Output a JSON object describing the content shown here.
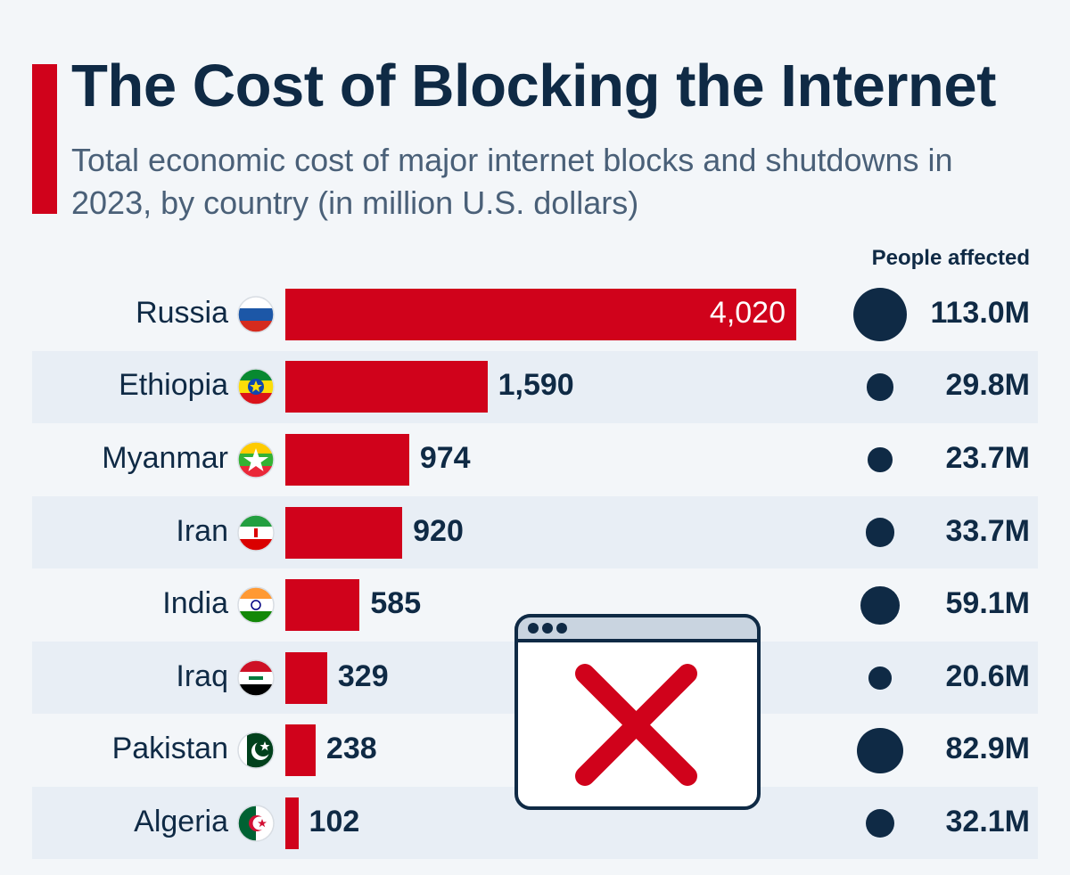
{
  "colors": {
    "accent": "#d0021b",
    "navy": "#0f2a45",
    "row_shade": "#e8eef5",
    "background": "#f3f6f9"
  },
  "header": {
    "title": "The Cost of Blocking the Internet",
    "subtitle": "Total economic cost of major internet blocks and shutdowns in 2023, by country (in million U.S. dollars)",
    "people_header": "People affected"
  },
  "icons": [
    "browser-window-icon",
    "red-x-icon"
  ],
  "chart_data": {
    "type": "bar",
    "orientation": "horizontal",
    "title": "The Cost of Blocking the Internet",
    "subtitle": "Total economic cost of major internet blocks and shutdowns in 2023, by country (in million U.S. dollars)",
    "xlim": [
      0,
      4020
    ],
    "grid": false,
    "categories": [
      "Russia",
      "Ethiopia",
      "Myanmar",
      "Iran",
      "India",
      "Iraq",
      "Pakistan",
      "Algeria"
    ],
    "values": [
      4020,
      1590,
      974,
      920,
      585,
      329,
      238,
      102
    ],
    "value_labels": [
      "4,020",
      "1,590",
      "974",
      "920",
      "585",
      "329",
      "238",
      "102"
    ],
    "people_affected": {
      "label": "People affected",
      "values": [
        113.0,
        29.8,
        23.7,
        33.7,
        59.1,
        20.6,
        82.9,
        32.1
      ],
      "labels": [
        "113.0M",
        "29.8M",
        "23.7M",
        "33.7M",
        "59.1M",
        "20.6M",
        "82.9M",
        "32.1M"
      ]
    },
    "flags": [
      "russia-flag-icon",
      "ethiopia-flag-icon",
      "myanmar-flag-icon",
      "iran-flag-icon",
      "india-flag-icon",
      "iraq-flag-icon",
      "pakistan-flag-icon",
      "algeria-flag-icon"
    ]
  }
}
